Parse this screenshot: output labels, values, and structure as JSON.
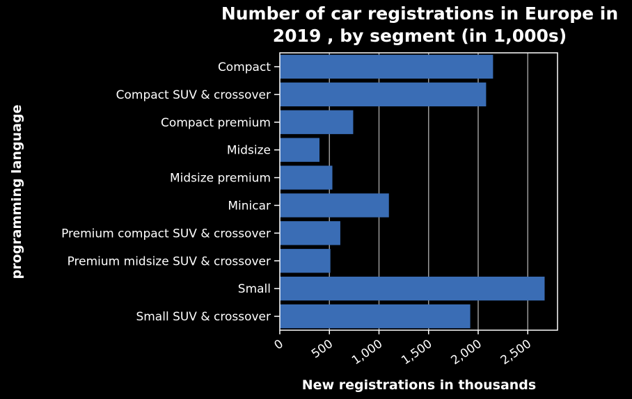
{
  "chart_data": {
    "type": "bar",
    "orientation": "horizontal",
    "title_lines": [
      "Number of car registrations in Europe in",
      "2019 , by segment (in 1,000s)"
    ],
    "xlabel": "New registrations in thousands",
    "ylabel": "programming language",
    "xlim": [
      0,
      2800
    ],
    "xticks": [
      0,
      500,
      1000,
      1500,
      2000,
      2500
    ],
    "xtick_labels": [
      "0",
      "500",
      "1,000",
      "1,500",
      "2,000",
      "2,500"
    ],
    "grid": "vertical",
    "categories": [
      "Compact",
      "Compact SUV & crossover",
      "Compact premium",
      "Midsize",
      "Midsize premium",
      "Minicar",
      "Premium compact SUV & crossover",
      "Premium midsize SUV & crossover",
      "Small",
      "Small SUV & crossover"
    ],
    "values": [
      2150,
      2080,
      740,
      400,
      530,
      1100,
      610,
      510,
      2670,
      1920
    ],
    "colors": {
      "bar": "#3a6db5",
      "background": "#000000",
      "text": "#ffffff",
      "grid": "#9a9a9a",
      "axis": "#ffffff"
    }
  }
}
